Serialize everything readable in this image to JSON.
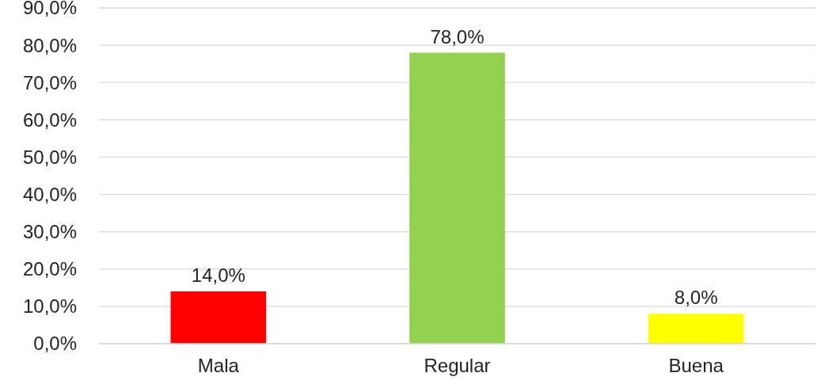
{
  "chart_data": {
    "type": "bar",
    "categories": [
      "Mala",
      "Regular",
      "Buena"
    ],
    "values": [
      14,
      78,
      8
    ],
    "colors": [
      "#ff0000",
      "#92d050",
      "#ffff00"
    ],
    "value_labels": [
      "14,0%",
      "78,0%",
      "8,0%"
    ],
    "ylim": [
      0,
      90
    ],
    "yticks": [
      {
        "value": 0,
        "label": "0,0%"
      },
      {
        "value": 10,
        "label": "10,0%"
      },
      {
        "value": 20,
        "label": "20,0%"
      },
      {
        "value": 30,
        "label": "30,0%"
      },
      {
        "value": 40,
        "label": "40,0%"
      },
      {
        "value": 50,
        "label": "50,0%"
      },
      {
        "value": 60,
        "label": "60,0%"
      },
      {
        "value": 70,
        "label": "70,0%"
      },
      {
        "value": 80,
        "label": "80,0%"
      },
      {
        "value": 90,
        "label": "90,0%"
      }
    ],
    "grid": "y"
  }
}
